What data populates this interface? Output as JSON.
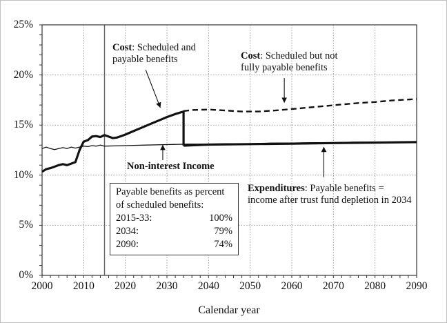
{
  "colors": {
    "background": "#ffffff",
    "line": "#111111",
    "grid": "#999999",
    "frame": "#333333",
    "divider": "#666666",
    "page_border": "#c0c0c0"
  },
  "axes": {
    "xlabel": "Calendar year",
    "x_tick_labels": [
      "2000",
      "2010",
      "2020",
      "2030",
      "2040",
      "2050",
      "2060",
      "2070",
      "2080",
      "2090"
    ],
    "y_tick_labels": [
      "0%",
      "5%",
      "10%",
      "15%",
      "20%",
      "25%"
    ]
  },
  "annotations": {
    "cost_payable": {
      "lead": "Cost",
      "line1": ": Scheduled and",
      "line2": "payable benefits"
    },
    "cost_not_payable": {
      "lead": "Cost",
      "line1": ": Scheduled but not",
      "line2": "fully payable benefits"
    },
    "non_interest_income": {
      "label": "Non-interest Income"
    },
    "expenditures": {
      "lead": "Expenditures",
      "line1": ": Payable benefits =",
      "line2": "income after trust fund depletion in 2034"
    }
  },
  "benefit_box": {
    "heading1": "Payable benefits as percent",
    "heading2": "of scheduled benefits:",
    "rows": [
      {
        "label": "2015-33:",
        "value": "100%"
      },
      {
        "label": "2034:",
        "value": "79%"
      },
      {
        "label": "2090:",
        "value": "74%"
      }
    ]
  },
  "chart_data": {
    "type": "line",
    "xlabel": "Calendar year",
    "ylabel": "",
    "xlim": [
      2000,
      2090
    ],
    "ylim": [
      0,
      25
    ],
    "x_ticks": [
      2000,
      2010,
      2020,
      2030,
      2040,
      2050,
      2060,
      2070,
      2080,
      2090
    ],
    "y_ticks": [
      0,
      5,
      10,
      15,
      20,
      25
    ],
    "x_minor_step": 2,
    "y_minor_step": 1,
    "grid": "dotted",
    "divider_year": 2015,
    "depletion_year": 2034,
    "series": [
      {
        "name": "Cost: Scheduled but not fully payable benefits",
        "style": "dashed",
        "points": [
          [
            2034,
            16.4
          ],
          [
            2036,
            16.5
          ],
          [
            2040,
            16.55
          ],
          [
            2044,
            16.45
          ],
          [
            2048,
            16.35
          ],
          [
            2052,
            16.35
          ],
          [
            2056,
            16.45
          ],
          [
            2060,
            16.6
          ],
          [
            2064,
            16.75
          ],
          [
            2068,
            16.9
          ],
          [
            2072,
            17.05
          ],
          [
            2076,
            17.2
          ],
          [
            2080,
            17.3
          ],
          [
            2084,
            17.45
          ],
          [
            2088,
            17.55
          ],
          [
            2090,
            17.6
          ]
        ]
      },
      {
        "name": "Non-interest Income",
        "style": "solid-thin",
        "points": [
          [
            2000,
            12.65
          ],
          [
            2001,
            12.8
          ],
          [
            2002,
            12.65
          ],
          [
            2003,
            12.55
          ],
          [
            2004,
            12.65
          ],
          [
            2005,
            12.75
          ],
          [
            2006,
            12.65
          ],
          [
            2007,
            12.8
          ],
          [
            2008,
            12.7
          ],
          [
            2009,
            12.8
          ],
          [
            2010,
            12.9
          ],
          [
            2011,
            12.85
          ],
          [
            2012,
            12.95
          ],
          [
            2013,
            12.9
          ],
          [
            2014,
            13.0
          ],
          [
            2015,
            12.9
          ],
          [
            2020,
            12.95
          ],
          [
            2025,
            13.0
          ],
          [
            2030,
            13.05
          ],
          [
            2035,
            13.1
          ],
          [
            2040,
            13.1
          ],
          [
            2045,
            13.15
          ],
          [
            2050,
            13.15
          ],
          [
            2055,
            13.2
          ],
          [
            2060,
            13.2
          ],
          [
            2065,
            13.25
          ],
          [
            2070,
            13.25
          ],
          [
            2075,
            13.3
          ],
          [
            2080,
            13.3
          ],
          [
            2085,
            13.3
          ],
          [
            2090,
            13.35
          ]
        ]
      },
      {
        "name": "Cost: Scheduled and payable benefits",
        "style": "solid-thick",
        "points": [
          [
            2000,
            10.35
          ],
          [
            2001,
            10.6
          ],
          [
            2002,
            10.7
          ],
          [
            2003,
            10.85
          ],
          [
            2004,
            11.0
          ],
          [
            2005,
            11.1
          ],
          [
            2006,
            11.0
          ],
          [
            2007,
            11.15
          ],
          [
            2008,
            11.3
          ],
          [
            2009,
            12.5
          ],
          [
            2010,
            13.35
          ],
          [
            2011,
            13.5
          ],
          [
            2012,
            13.85
          ],
          [
            2013,
            13.9
          ],
          [
            2014,
            13.8
          ],
          [
            2015,
            14.0
          ],
          [
            2016,
            13.85
          ],
          [
            2017,
            13.7
          ],
          [
            2018,
            13.75
          ],
          [
            2019,
            13.9
          ],
          [
            2020,
            14.05
          ],
          [
            2022,
            14.4
          ],
          [
            2024,
            14.75
          ],
          [
            2026,
            15.1
          ],
          [
            2028,
            15.45
          ],
          [
            2030,
            15.8
          ],
          [
            2032,
            16.1
          ],
          [
            2034,
            16.35
          ],
          [
            2034,
            12.95
          ]
        ]
      },
      {
        "name": "Expenditures: Payable benefits = income after trust fund depletion in 2034",
        "style": "solid-thick",
        "points": [
          [
            2034,
            12.95
          ],
          [
            2040,
            13.05
          ],
          [
            2050,
            13.1
          ],
          [
            2060,
            13.15
          ],
          [
            2070,
            13.2
          ],
          [
            2080,
            13.25
          ],
          [
            2090,
            13.3
          ]
        ]
      }
    ],
    "arrows": [
      {
        "x1": 2024.9,
        "y1": 20.5,
        "x2": 2028.4,
        "y2": 16.75
      },
      {
        "x1": 2058.2,
        "y1": 19.7,
        "x2": 2058.2,
        "y2": 17.25
      },
      {
        "x1": 2029.0,
        "y1": 11.5,
        "x2": 2029.0,
        "y2": 13.0
      },
      {
        "x1": 2067.7,
        "y1": 9.8,
        "x2": 2067.7,
        "y2": 12.8
      }
    ]
  }
}
